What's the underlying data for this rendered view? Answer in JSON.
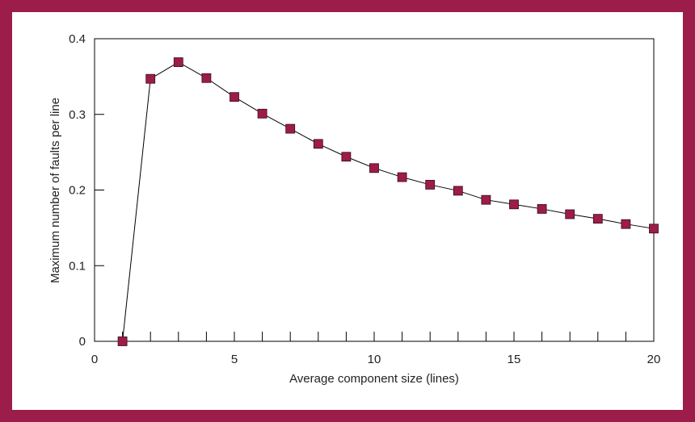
{
  "chart_data": {
    "type": "line",
    "title": "",
    "xlabel": "Average component size (lines)",
    "ylabel": "Maximum number of faults per line",
    "xlim": [
      0,
      20
    ],
    "ylim": [
      0,
      0.4
    ],
    "x_ticks": [
      0,
      5,
      10,
      15,
      20
    ],
    "x_tick_labels": [
      "0",
      "5",
      "10",
      "15",
      "20"
    ],
    "y_ticks": [
      0,
      0.1,
      0.2,
      0.3,
      0.4
    ],
    "y_tick_labels": [
      "0",
      "0.1",
      "0.2",
      "0.3",
      "0.4"
    ],
    "grid": false,
    "legend": "none",
    "series": [
      {
        "x": [
          1,
          2,
          3,
          4,
          5,
          6,
          7,
          8,
          9,
          10,
          11,
          12,
          13,
          14,
          15,
          16,
          17,
          18,
          19,
          20
        ],
        "y": [
          0.0,
          0.347,
          0.369,
          0.348,
          0.323,
          0.301,
          0.281,
          0.261,
          0.244,
          0.229,
          0.217,
          0.207,
          0.199,
          0.187,
          0.181,
          0.175,
          0.168,
          0.162,
          0.155,
          0.149
        ],
        "marker": "square",
        "color": "#9c1c4a",
        "line_color": "#000000"
      }
    ]
  }
}
